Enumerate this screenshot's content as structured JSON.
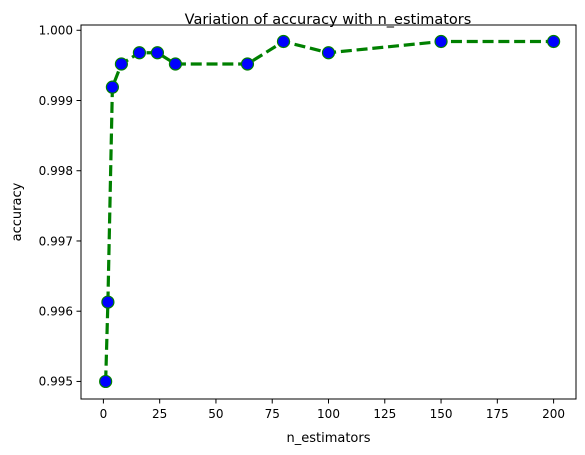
{
  "chart_data": {
    "type": "line",
    "title": "Variation of accuracy with n_estimators",
    "xlabel": "n_estimators",
    "ylabel": "accuracy",
    "xlim": [
      -9.95,
      209.95
    ],
    "ylim": [
      0.99475,
      1.000075
    ],
    "x_ticks": [
      0,
      25,
      50,
      75,
      100,
      125,
      150,
      175,
      200
    ],
    "y_ticks": [
      0.995,
      0.996,
      0.997,
      0.998,
      0.999,
      1.0
    ],
    "x_tick_labels": [
      "0",
      "25",
      "50",
      "75",
      "100",
      "125",
      "150",
      "175",
      "200"
    ],
    "y_tick_labels": [
      "0.995",
      "0.996",
      "0.997",
      "0.998",
      "0.999",
      "1.000"
    ],
    "grid": false,
    "series": [
      {
        "line_color": "#008000",
        "line_style": "dashed",
        "marker": "circle",
        "marker_face_color": "#0000ff",
        "marker_edge_color": "#008000",
        "x": [
          1,
          2,
          4,
          8,
          16,
          24,
          32,
          64,
          80,
          100,
          150,
          200
        ],
        "y": [
          0.995,
          0.99613,
          0.99919,
          0.99952,
          0.99968,
          0.99968,
          0.99952,
          0.99952,
          0.99984,
          0.99968,
          0.99984,
          0.99984
        ]
      }
    ]
  }
}
